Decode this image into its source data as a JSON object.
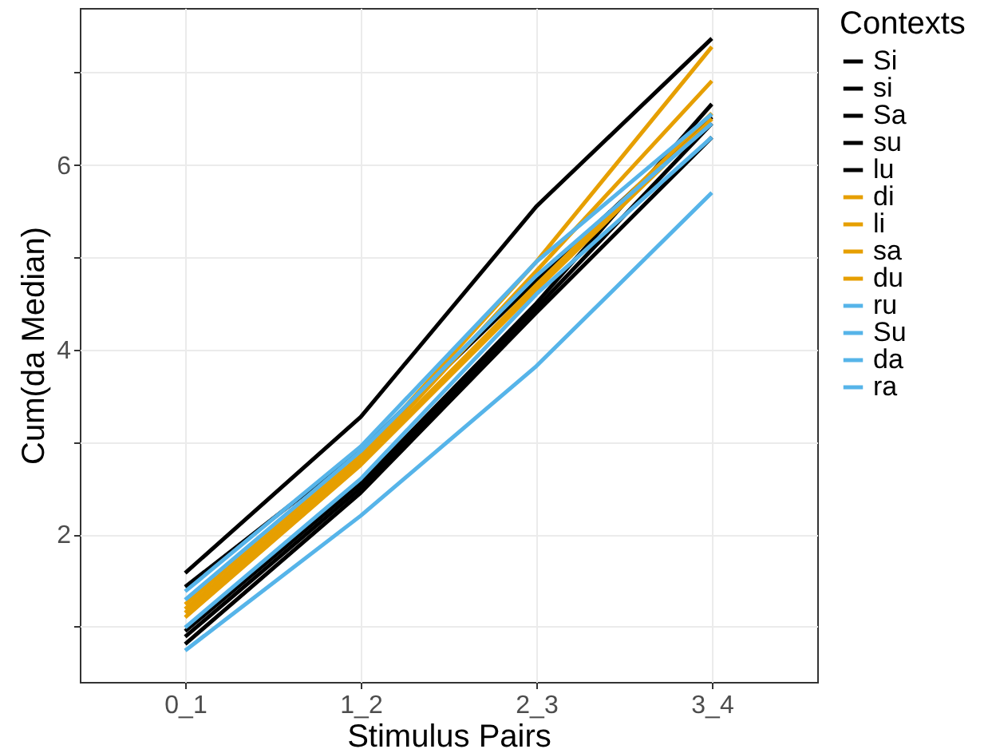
{
  "chart_data": {
    "type": "line",
    "xlabel": "Stimulus Pairs",
    "ylabel": "Cum(da Median)",
    "legend_title": "Contexts",
    "legend": "right",
    "grid": true,
    "line_style": "solid",
    "categories": [
      "0_1",
      "1_2",
      "2_3",
      "3_4"
    ],
    "ylim": [
      0.4,
      7.7
    ],
    "yticks": [
      {
        "value": 1,
        "label": null
      },
      2,
      {
        "value": 3,
        "label": null
      },
      4,
      {
        "value": 5,
        "label": null
      },
      6,
      {
        "value": 7,
        "label": null
      }
    ],
    "series": [
      {
        "name": "Si",
        "color": "#000000",
        "values": [
          1.58,
          3.27,
          5.55,
          7.37
        ]
      },
      {
        "name": "si",
        "color": "#000000",
        "values": [
          1.43,
          2.91,
          4.75,
          6.52
        ]
      },
      {
        "name": "Sa",
        "color": "#000000",
        "values": [
          0.95,
          2.55,
          4.5,
          6.66
        ]
      },
      {
        "name": "su",
        "color": "#000000",
        "values": [
          0.89,
          2.5,
          4.45,
          6.45
        ]
      },
      {
        "name": "lu",
        "color": "#000000",
        "values": [
          0.81,
          2.45,
          4.4,
          6.3
        ]
      },
      {
        "name": "di",
        "color": "#e69f00",
        "values": [
          1.24,
          2.85,
          4.95,
          7.28
        ]
      },
      {
        "name": "li",
        "color": "#e69f00",
        "values": [
          1.19,
          2.8,
          4.85,
          6.91
        ]
      },
      {
        "name": "sa",
        "color": "#e69f00",
        "values": [
          1.15,
          2.78,
          4.7,
          6.56
        ]
      },
      {
        "name": "du",
        "color": "#e69f00",
        "values": [
          1.1,
          2.75,
          4.65,
          6.5
        ]
      },
      {
        "name": "ru",
        "color": "#56b4e9",
        "values": [
          1.38,
          2.95,
          4.95,
          6.55
        ]
      },
      {
        "name": "Su",
        "color": "#56b4e9",
        "values": [
          1.29,
          2.9,
          4.8,
          6.45
        ]
      },
      {
        "name": "da",
        "color": "#56b4e9",
        "values": [
          0.99,
          2.6,
          4.6,
          6.3
        ]
      },
      {
        "name": "ra",
        "color": "#56b4e9",
        "values": [
          0.74,
          2.2,
          3.82,
          5.7
        ]
      }
    ]
  }
}
